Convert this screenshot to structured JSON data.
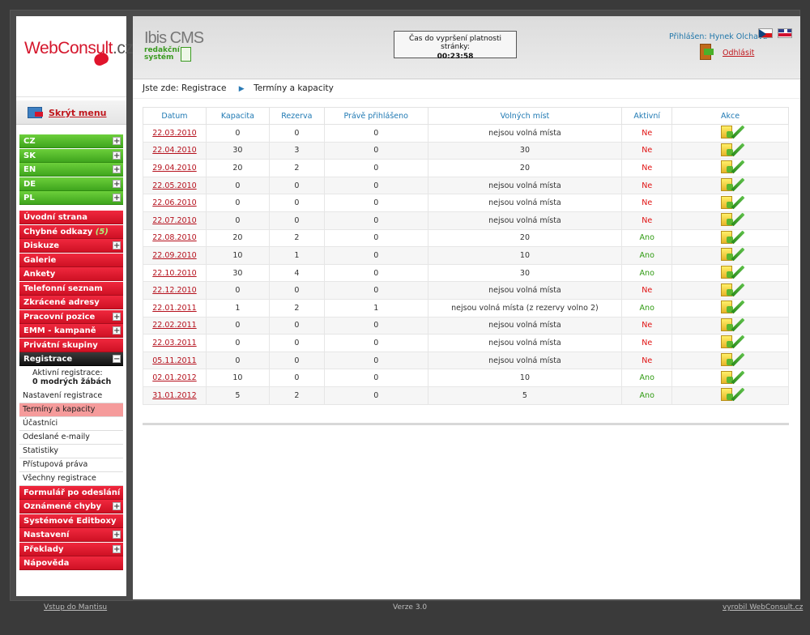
{
  "logo": {
    "part1": "WebConsult",
    "part2": ".cz"
  },
  "sidebar": {
    "hide_menu": "Skrýt menu",
    "lang_items": [
      {
        "label": "CZ"
      },
      {
        "label": "SK"
      },
      {
        "label": "EN"
      },
      {
        "label": "DE"
      },
      {
        "label": "PL"
      }
    ],
    "items_top": [
      {
        "label": "Úvodní strana"
      },
      {
        "label": "Chybné odkazy",
        "count": "(5)"
      },
      {
        "label": "Diskuze",
        "plus": true
      },
      {
        "label": "Galerie"
      },
      {
        "label": "Ankety"
      },
      {
        "label": "Telefonní seznam"
      },
      {
        "label": "Zkrácené adresy"
      },
      {
        "label": "Pracovní pozice",
        "plus": true
      },
      {
        "label": "EMM - kampaně",
        "plus": true
      },
      {
        "label": "Privátní skupiny"
      }
    ],
    "registrace": {
      "label": "Registrace",
      "minus": "−"
    },
    "reg_info": {
      "line1": "Aktivní registrace:",
      "line2": "0 modrých žábách"
    },
    "sub_items": [
      {
        "label": "Nastavení registrace"
      },
      {
        "label": "Termíny a kapacity",
        "active": true
      },
      {
        "label": "Účastníci"
      },
      {
        "label": "Odeslané e-maily"
      },
      {
        "label": "Statistiky"
      },
      {
        "label": "Přístupová práva"
      },
      {
        "label": "Všechny registrace"
      }
    ],
    "items_bottom": [
      {
        "label": "Formulář po odeslání"
      },
      {
        "label": "Oznámené chyby",
        "plus": true
      },
      {
        "label": "Systémové Editboxy"
      },
      {
        "label": "Nastavení",
        "plus": true
      },
      {
        "label": "Překlady",
        "plus": true
      },
      {
        "label": "Nápověda"
      }
    ]
  },
  "header": {
    "brand": "Ibis CMS",
    "brand_sub1": "redakční",
    "brand_sub2": "systém",
    "timer_label": "Čas do vypršení platnosti stránky:",
    "timer_value": "00:23:58",
    "login": "Přihlášen: Hynek Olchava",
    "logout": "Odhlásit"
  },
  "breadcrumb": {
    "prefix": "Jste zde:",
    "item1": "Registrace",
    "arrow": "▶",
    "item2": "Termíny a kapacity"
  },
  "table": {
    "headers": [
      "Datum",
      "Kapacita",
      "Rezerva",
      "Právě přihlášeno",
      "Volných míst",
      "Aktivní",
      "Akce"
    ],
    "rows": [
      [
        "22.03.2010",
        "0",
        "0",
        "0",
        "nejsou volná místa",
        "Ne"
      ],
      [
        "22.04.2010",
        "30",
        "3",
        "0",
        "30",
        "Ne"
      ],
      [
        "29.04.2010",
        "20",
        "2",
        "0",
        "20",
        "Ne"
      ],
      [
        "22.05.2010",
        "0",
        "0",
        "0",
        "nejsou volná místa",
        "Ne"
      ],
      [
        "22.06.2010",
        "0",
        "0",
        "0",
        "nejsou volná místa",
        "Ne"
      ],
      [
        "22.07.2010",
        "0",
        "0",
        "0",
        "nejsou volná místa",
        "Ne"
      ],
      [
        "22.08.2010",
        "20",
        "2",
        "0",
        "20",
        "Ano"
      ],
      [
        "22.09.2010",
        "10",
        "1",
        "0",
        "10",
        "Ano"
      ],
      [
        "22.10.2010",
        "30",
        "4",
        "0",
        "30",
        "Ano"
      ],
      [
        "22.12.2010",
        "0",
        "0",
        "0",
        "nejsou volná místa",
        "Ne"
      ],
      [
        "22.01.2011",
        "1",
        "2",
        "1",
        "nejsou volná místa (z rezervy volno 2)",
        "Ano"
      ],
      [
        "22.02.2011",
        "0",
        "0",
        "0",
        "nejsou volná místa",
        "Ne"
      ],
      [
        "22.03.2011",
        "0",
        "0",
        "0",
        "nejsou volná místa",
        "Ne"
      ],
      [
        "05.11.2011",
        "0",
        "0",
        "0",
        "nejsou volná místa",
        "Ne"
      ],
      [
        "02.01.2012",
        "10",
        "0",
        "0",
        "10",
        "Ano"
      ],
      [
        "31.01.2012",
        "5",
        "2",
        "0",
        "5",
        "Ano"
      ]
    ]
  },
  "footer": {
    "left": "Vstup do Mantisu",
    "center": "Verze 3.0",
    "right": "vyrobil WebConsult.cz"
  }
}
